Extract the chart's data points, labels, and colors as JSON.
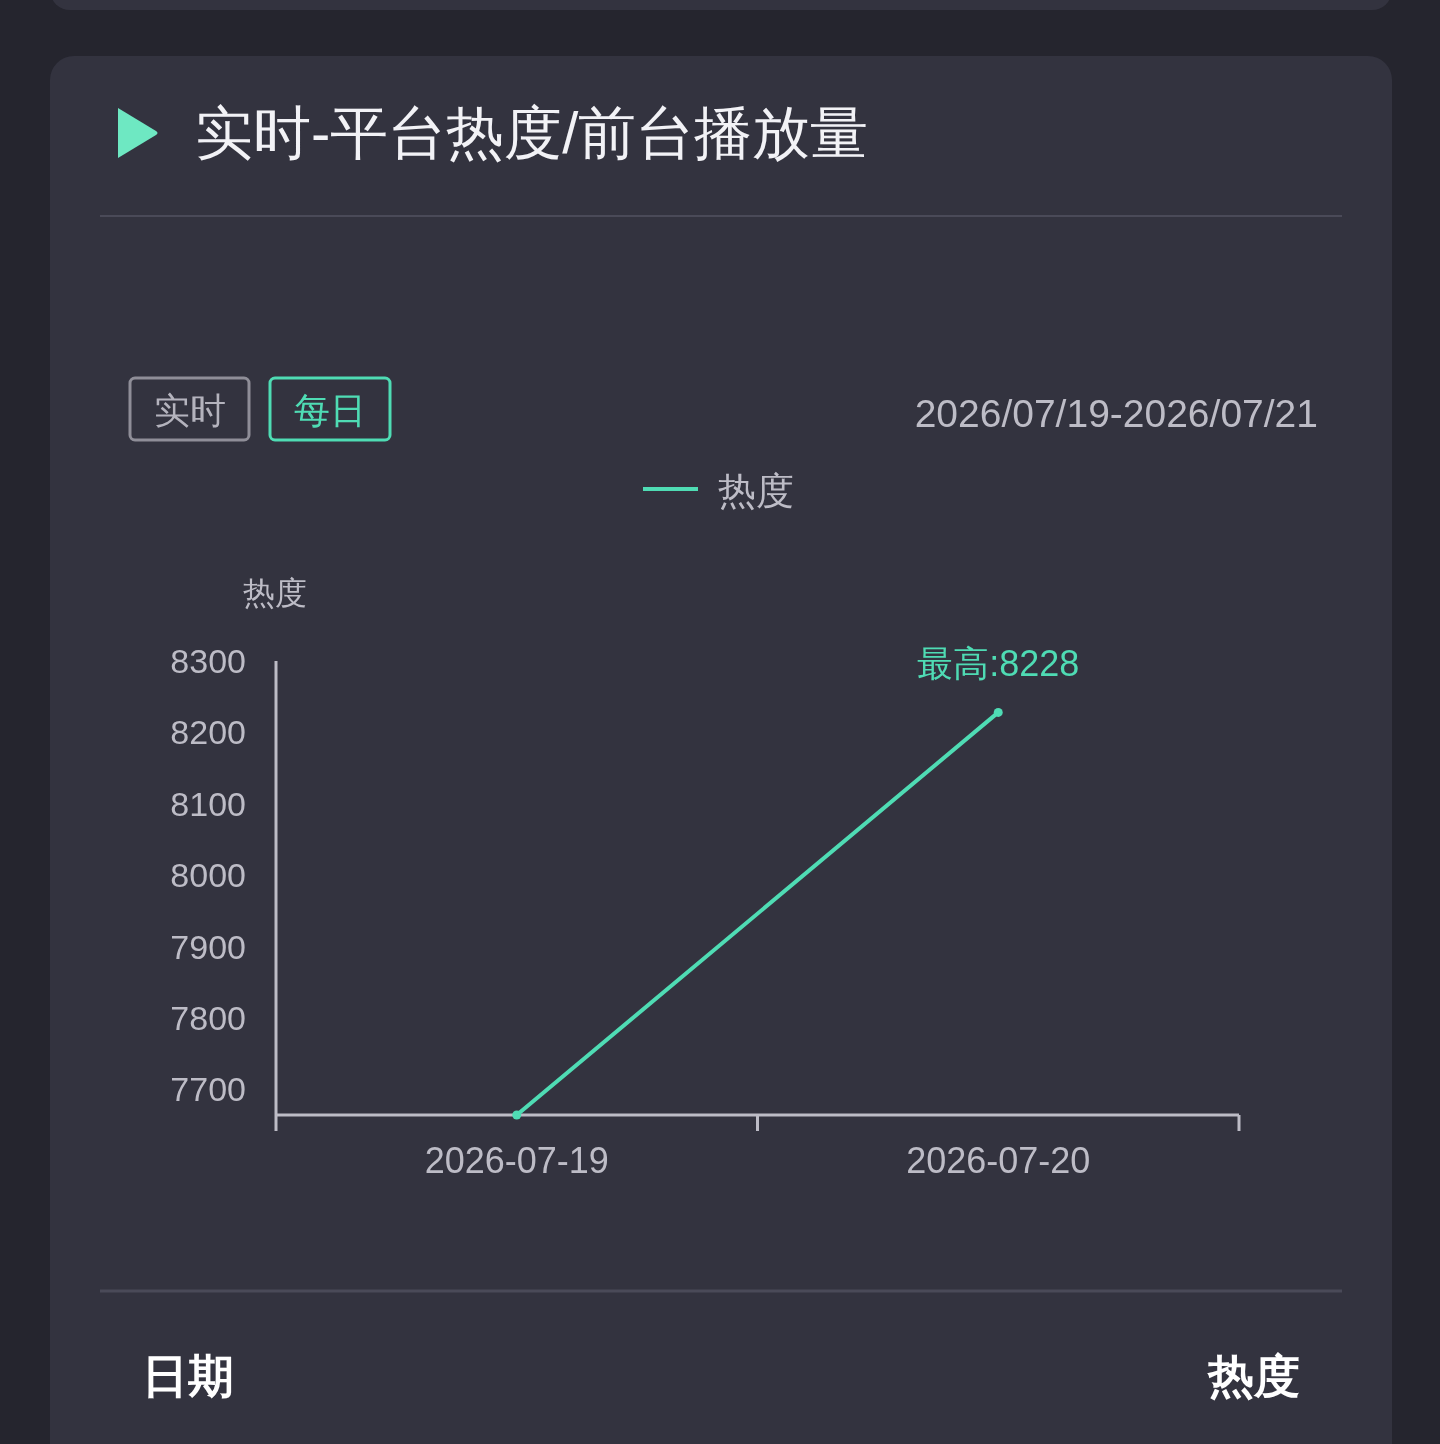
{
  "chart_data": {
    "type": "line",
    "title": "实时-平台热度/前台播放量",
    "subtitle": "2026/07/19-2026/07/21",
    "ylabel": "热度",
    "categories": [
      "2026-07-19",
      "2026-07-20"
    ],
    "series": [
      {
        "name": "热度",
        "color": "#4fdcb4",
        "values": [
          7664,
          8228
        ]
      }
    ],
    "ylim": [
      7664,
      8300
    ],
    "yticks": [
      7700,
      7800,
      7900,
      8000,
      8100,
      8200,
      8300
    ],
    "annotations": [
      "实时",
      "每日",
      {
        "text": "最高:8228",
        "x": "2026-07-20",
        "y": 8228
      },
      "日期",
      "热度"
    ],
    "legend": "top",
    "grid": false,
    "marker": "circle",
    "line_style": "solid"
  }
}
